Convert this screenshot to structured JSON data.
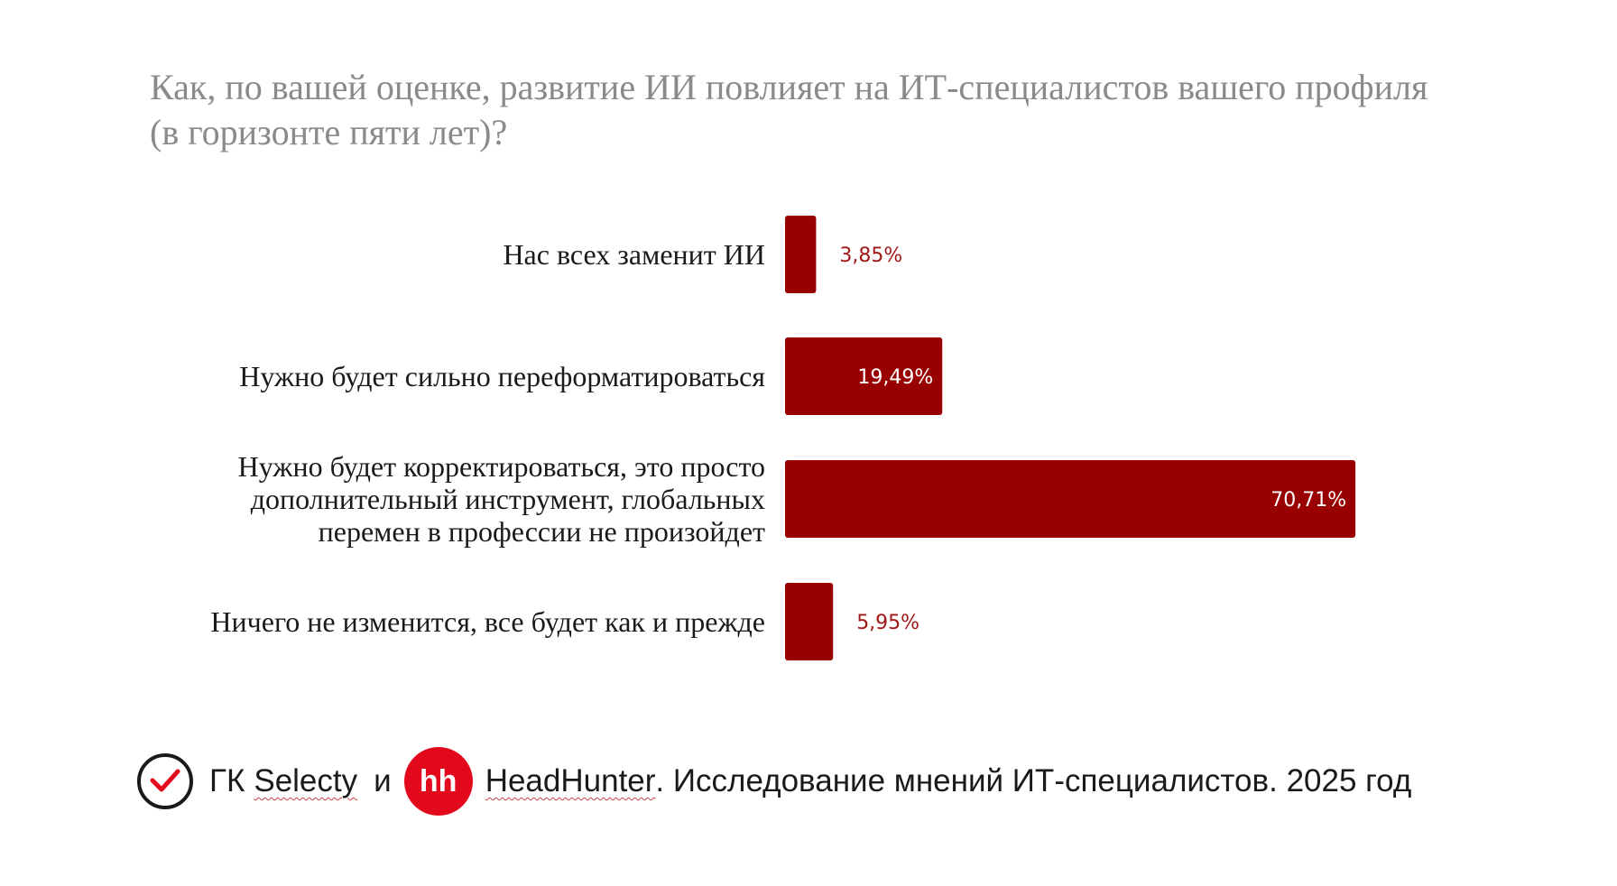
{
  "chart_data": {
    "type": "bar",
    "orientation": "horizontal",
    "title": "Как, по вашей оценке, развитие ИИ повлияет на ИТ-специалистов вашего профиля (в горизонте пяти лет)?",
    "categories": [
      [
        "Нас всех заменит ИИ"
      ],
      [
        "Нужно будет сильно переформатироваться"
      ],
      [
        "Нужно будет корректироваться, это просто",
        "дополнительный инструмент, глобальных",
        "перемен в профессии не произойдет"
      ],
      [
        "Ничего не изменится, все будет как и прежде"
      ]
    ],
    "values": [
      3.85,
      19.49,
      70.71,
      5.95
    ],
    "value_labels": [
      "3,85%",
      "19,49%",
      "70,71%",
      "5,95%"
    ],
    "bar_color": "#990000",
    "label_inside_color": "#ffffff",
    "label_outside_color": "#a01818",
    "grid": false,
    "legend": "none"
  },
  "footer": {
    "prefix": "ГК",
    "selecty": "Selecty",
    "and": "и",
    "hh_logo": "hh",
    "headhunter": "HeadHunter",
    "caption": ". Исследование мнений ИТ-специалистов. 2025 год",
    "check_icon": "check-circle-icon",
    "hh_color": "#e3091d"
  }
}
